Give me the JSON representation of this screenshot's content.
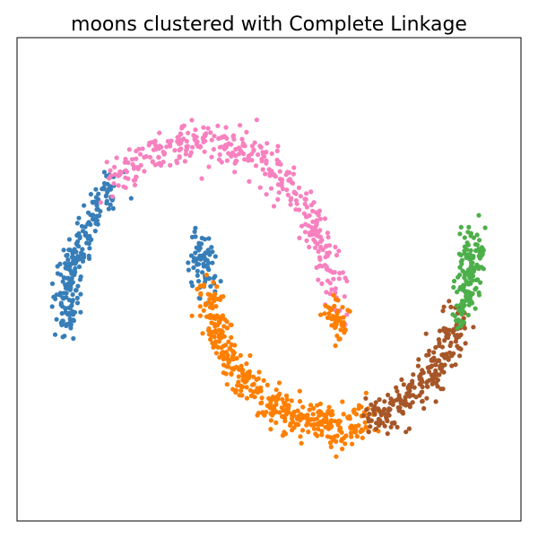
{
  "chart_data": {
    "type": "scatter",
    "title": "moons clustered with Complete Linkage",
    "xlabel": "",
    "ylabel": "",
    "xlim": [
      -1.35,
      2.35
    ],
    "ylim": [
      -1.0,
      1.55
    ],
    "grid": false,
    "axes_ticks": false,
    "legend": null,
    "point_count": 1500,
    "series": [
      {
        "color": "#377eb8",
        "count": 290,
        "segments": [
          {
            "moon": "upper",
            "t_range": [
              0.72,
              1.0
            ]
          },
          {
            "moon": "lower",
            "t_range": [
              0.0,
              0.09
            ]
          }
        ]
      },
      {
        "color": "#f781bf",
        "count": 370,
        "segments": [
          {
            "moon": "upper",
            "t_range": [
              0.05,
              0.72
            ]
          }
        ]
      },
      {
        "color": "#ff7f00",
        "count": 460,
        "segments": [
          {
            "moon": "upper",
            "t_range": [
              0.0,
              0.05
            ]
          },
          {
            "moon": "lower",
            "t_range": [
              0.09,
              0.58
            ]
          }
        ]
      },
      {
        "color": "#a65628",
        "count": 230,
        "segments": [
          {
            "moon": "lower",
            "t_range": [
              0.58,
              0.86
            ]
          }
        ]
      },
      {
        "color": "#4daf4a",
        "count": 150,
        "segments": [
          {
            "moon": "lower",
            "t_range": [
              0.86,
              1.0
            ]
          }
        ]
      }
    ]
  }
}
